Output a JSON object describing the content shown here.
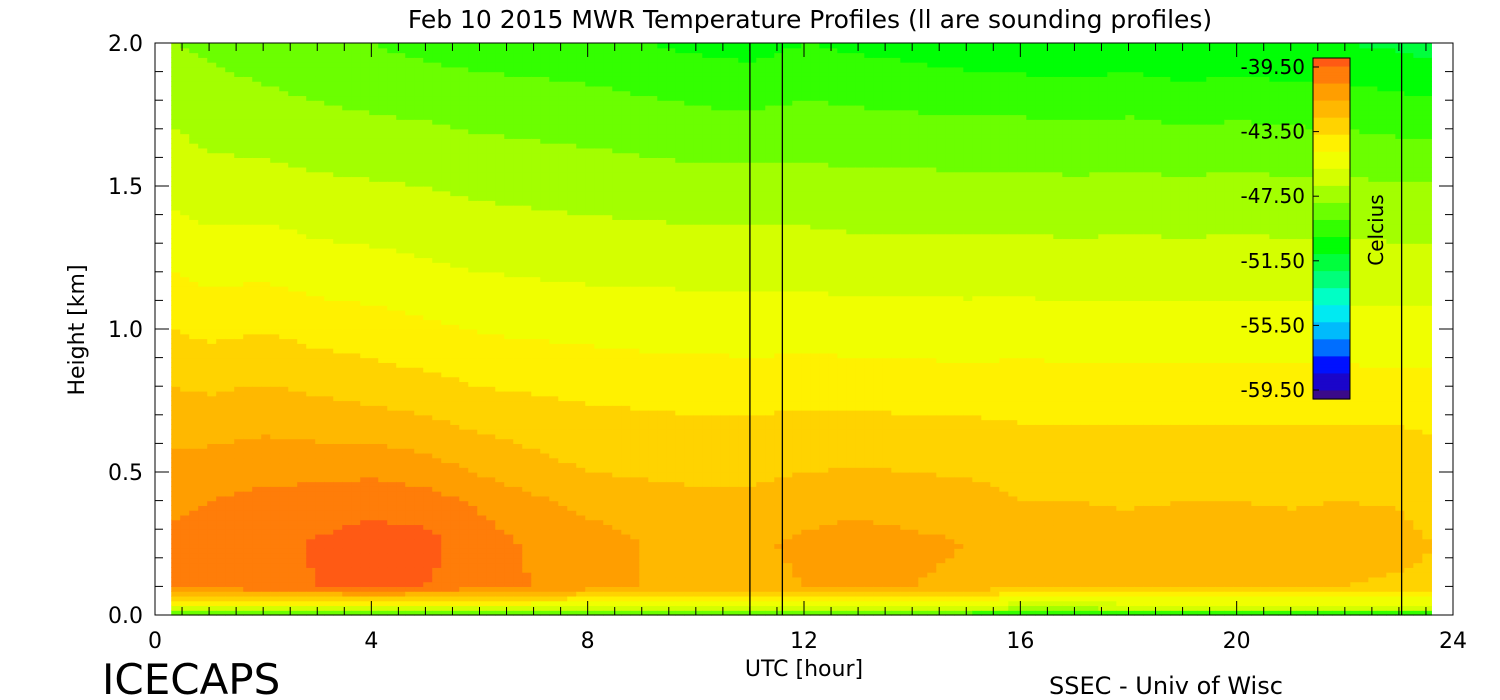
{
  "chart_data": {
    "type": "heatmap",
    "title": "Feb 10 2015 MWR Temperature Profiles (ll are sounding profiles)",
    "xlabel": "UTC [hour]",
    "ylabel": "Height [km]",
    "xlim": [
      0,
      24
    ],
    "ylim": [
      0,
      2
    ],
    "x_ticks": [
      "0",
      "4",
      "8",
      "12",
      "16",
      "20",
      "24"
    ],
    "y_ticks": [
      "0.0",
      "0.5",
      "1.0",
      "1.5",
      "2.0"
    ],
    "data_x_range": [
      0.3,
      23.6
    ],
    "sounding_profiles_utc": [
      11.0,
      11.6,
      23.05
    ],
    "colorbar": {
      "label": "Celcius",
      "ticks": [
        "-39.50",
        "-43.50",
        "-47.50",
        "-51.50",
        "-55.50",
        "-59.50"
      ],
      "range": [
        -59.5,
        -39.5
      ]
    },
    "temperature_grid": {
      "hours": [
        0.3,
        1,
        2,
        3,
        4,
        5,
        6,
        7,
        8,
        9,
        10,
        11,
        12,
        13,
        14,
        15,
        16,
        17,
        18,
        19,
        20,
        21,
        22,
        23,
        23.6
      ],
      "heights_km": [
        0.0,
        0.02,
        0.1,
        0.25,
        0.4,
        0.5,
        0.7,
        0.9,
        1.2,
        1.5,
        1.8,
        2.0
      ],
      "values": [
        [
          -50.5,
          -50.5,
          -50.5,
          -50.5,
          -50.5,
          -50.5,
          -50.5,
          -50.5,
          -50.5,
          -50.5,
          -50.5,
          -50.5,
          -50.5,
          -50.5,
          -50.5,
          -50.5,
          -51.5,
          -51.0,
          -50.5,
          -50.5,
          -50.5,
          -51.0,
          -50.5,
          -50.5,
          -50.5
        ],
        [
          -46.5,
          -46.5,
          -46.5,
          -46.5,
          -46.5,
          -46.5,
          -46.5,
          -46.5,
          -46.5,
          -46.5,
          -46.5,
          -46.5,
          -46.5,
          -46.5,
          -46.5,
          -46.5,
          -47.5,
          -47.5,
          -47.0,
          -47.0,
          -47.0,
          -47.0,
          -47.0,
          -47.0,
          -47.0
        ],
        [
          -40.5,
          -40.5,
          -40.3,
          -40.0,
          -39.9,
          -40.0,
          -40.6,
          -41.0,
          -41.5,
          -42.0,
          -42.2,
          -42.3,
          -42.0,
          -41.8,
          -42.0,
          -42.2,
          -43.0,
          -43.0,
          -43.0,
          -43.0,
          -43.0,
          -43.0,
          -43.0,
          -43.2,
          -43.2
        ],
        [
          -40.8,
          -40.6,
          -40.3,
          -39.9,
          -39.6,
          -39.7,
          -40.5,
          -41.2,
          -41.5,
          -42.0,
          -42.2,
          -42.2,
          -41.8,
          -41.7,
          -41.8,
          -42.0,
          -42.6,
          -42.4,
          -42.6,
          -42.5,
          -42.4,
          -42.6,
          -42.4,
          -42.6,
          -43.0
        ],
        [
          -41.2,
          -41.0,
          -40.7,
          -40.5,
          -40.3,
          -40.5,
          -41.2,
          -41.8,
          -42.3,
          -42.6,
          -42.8,
          -42.8,
          -42.4,
          -42.2,
          -42.4,
          -42.5,
          -43.0,
          -43.0,
          -43.1,
          -43.0,
          -43.0,
          -43.1,
          -43.0,
          -43.1,
          -43.4
        ],
        [
          -41.6,
          -41.5,
          -41.3,
          -41.3,
          -41.2,
          -41.5,
          -42.1,
          -42.6,
          -43.0,
          -43.1,
          -43.2,
          -43.2,
          -43.0,
          -42.9,
          -43.0,
          -43.1,
          -43.4,
          -43.4,
          -43.5,
          -43.4,
          -43.4,
          -43.5,
          -43.4,
          -43.5,
          -43.6
        ],
        [
          -42.5,
          -42.6,
          -42.4,
          -42.6,
          -42.8,
          -43.0,
          -43.4,
          -43.6,
          -43.8,
          -43.9,
          -44.0,
          -44.0,
          -43.9,
          -43.9,
          -44.0,
          -44.0,
          -44.1,
          -44.1,
          -44.1,
          -44.1,
          -44.1,
          -44.1,
          -44.1,
          -44.1,
          -44.2
        ],
        [
          -43.5,
          -43.7,
          -43.5,
          -43.8,
          -44.0,
          -44.3,
          -44.6,
          -44.7,
          -44.8,
          -44.9,
          -44.9,
          -45.0,
          -44.9,
          -45.0,
          -45.0,
          -45.1,
          -45.0,
          -45.1,
          -45.1,
          -45.1,
          -45.1,
          -45.1,
          -45.1,
          -45.2,
          -45.2
        ],
        [
          -45.0,
          -45.3,
          -45.2,
          -45.5,
          -45.6,
          -45.8,
          -46.0,
          -46.1,
          -46.2,
          -46.2,
          -46.3,
          -46.3,
          -46.3,
          -46.4,
          -46.4,
          -46.4,
          -46.4,
          -46.5,
          -46.4,
          -46.5,
          -46.4,
          -46.5,
          -46.5,
          -46.5,
          -46.5
        ],
        [
          -46.3,
          -46.6,
          -46.6,
          -46.8,
          -46.9,
          -47.0,
          -47.2,
          -47.3,
          -47.4,
          -47.5,
          -47.6,
          -47.6,
          -47.6,
          -47.7,
          -47.7,
          -47.7,
          -47.7,
          -47.8,
          -47.7,
          -47.8,
          -47.7,
          -47.8,
          -47.8,
          -47.9,
          -47.9
        ],
        [
          -47.3,
          -47.6,
          -47.8,
          -48.0,
          -48.2,
          -48.3,
          -48.5,
          -48.6,
          -48.7,
          -48.9,
          -49.1,
          -49.2,
          -49.0,
          -49.1,
          -49.2,
          -49.3,
          -49.3,
          -49.4,
          -49.3,
          -49.5,
          -49.4,
          -49.5,
          -49.6,
          -49.8,
          -49.9
        ],
        [
          -48.0,
          -48.2,
          -48.5,
          -48.8,
          -49.0,
          -49.3,
          -49.5,
          -49.6,
          -49.7,
          -50.0,
          -50.2,
          -50.4,
          -50.0,
          -50.2,
          -50.4,
          -50.6,
          -50.8,
          -50.9,
          -50.7,
          -51.0,
          -50.8,
          -51.0,
          -51.0,
          -51.2,
          -51.4
        ]
      ]
    }
  },
  "footer": {
    "left_logo": "ICECAPS",
    "right_credit": "SSEC - Univ of Wisc"
  },
  "colors": {
    "palette": [
      "#3a0a8a",
      "#0000ff",
      "#00aaff",
      "#00ffee",
      "#00ff66",
      "#00ff00",
      "#66ff00",
      "#ccff00",
      "#ffff00",
      "#ffc800",
      "#ff9900",
      "#ff5a14"
    ]
  }
}
